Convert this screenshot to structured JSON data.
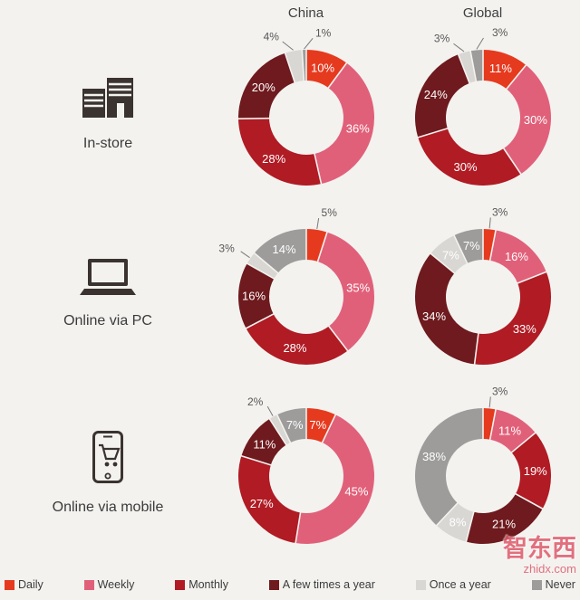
{
  "header": {
    "china": "China",
    "global": "Global"
  },
  "rows": [
    {
      "label": "In-store"
    },
    {
      "label": "Online via PC"
    },
    {
      "label": "Online via mobile"
    }
  ],
  "legend": {
    "items": [
      {
        "label": "Daily",
        "color": "#e63a1f"
      },
      {
        "label": "Weekly",
        "color": "#e16079"
      },
      {
        "label": "Monthly",
        "color": "#b01b24"
      },
      {
        "label": "A few times a year",
        "color": "#6e1a1e"
      },
      {
        "label": "Once a year",
        "color": "#d8d7d4"
      },
      {
        "label": "Never",
        "color": "#9d9c9b"
      }
    ]
  },
  "watermark": {
    "brand": "智东西",
    "site": "zhidx.com"
  },
  "chart_data": {
    "type": "pie",
    "variant": "donut",
    "unit": "%",
    "legend_position": "bottom",
    "columns": [
      "China",
      "Global"
    ],
    "rows": [
      "In-store",
      "Online via PC",
      "Online via mobile"
    ],
    "categories": [
      "Daily",
      "Weekly",
      "Monthly",
      "A few times a year",
      "Once a year",
      "Never"
    ],
    "colors": [
      "#e63a1f",
      "#e16079",
      "#b01b24",
      "#6e1a1e",
      "#d8d7d4",
      "#9d9c9b"
    ],
    "charts": [
      {
        "row": "In-store",
        "column": "China",
        "values": [
          10,
          36,
          28,
          20,
          4,
          1
        ]
      },
      {
        "row": "In-store",
        "column": "Global",
        "values": [
          11,
          30,
          30,
          24,
          3,
          3
        ]
      },
      {
        "row": "Online via PC",
        "column": "China",
        "values": [
          5,
          35,
          28,
          16,
          3,
          14
        ]
      },
      {
        "row": "Online via PC",
        "column": "Global",
        "values": [
          3,
          16,
          33,
          34,
          7,
          7
        ]
      },
      {
        "row": "Online via mobile",
        "column": "China",
        "values": [
          7,
          45,
          27,
          11,
          2,
          7
        ]
      },
      {
        "row": "Online via mobile",
        "column": "Global",
        "values": [
          3,
          11,
          19,
          21,
          8,
          38
        ]
      }
    ]
  }
}
